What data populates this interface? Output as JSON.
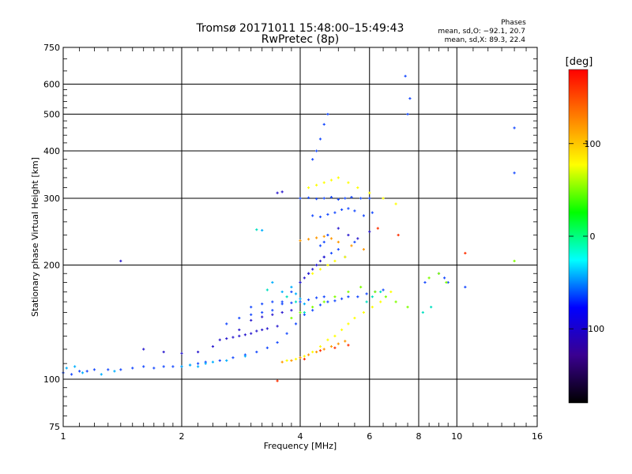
{
  "chart_data": {
    "type": "scatter",
    "title": "Tromsø 20171011 15:48:00–15:49:43",
    "subtitle": "RwPretec (8p)",
    "xlabel": "Frequency [MHz]",
    "ylabel": "Stationary phase Virtual Height [km]",
    "x_scale": "log",
    "y_scale": "log",
    "xlim": [
      1,
      16
    ],
    "ylim": [
      75,
      750
    ],
    "x_ticks": [
      1,
      2,
      4,
      6,
      8,
      10,
      16
    ],
    "y_ticks": [
      75,
      100,
      200,
      300,
      400,
      500,
      600,
      750
    ],
    "grid": true,
    "annotation": {
      "title": "Phases",
      "line1": "mean, sd,O: −92.1, 20.7",
      "line2": "mean, sd,X:  89.3, 22.4"
    },
    "colorbar": {
      "label": "[deg]",
      "range": [
        -180,
        180
      ],
      "ticks": [
        100,
        0,
        -100
      ],
      "colors": [
        "#ff0000",
        "#ff8000",
        "#ffff00",
        "#00ff00",
        "#00ffff",
        "#0000ff",
        "#3a0090",
        "#000000"
      ]
    },
    "series": [
      {
        "color": "#1a4dff",
        "phase": -100,
        "x": [
          1.0,
          1.05,
          1.1,
          1.15,
          1.2,
          1.3,
          1.4,
          1.5,
          1.6,
          1.7,
          1.8,
          1.9,
          2.0,
          2.1,
          2.2,
          2.3,
          2.5,
          2.7,
          2.9,
          3.1,
          3.3,
          3.5,
          3.7,
          3.9,
          4.1,
          4.3,
          4.5,
          4.7,
          4.9,
          5.1,
          5.3,
          5.6,
          5.9,
          6.2,
          6.5,
          4.0,
          4.2,
          4.4,
          4.6,
          4.8,
          5.0,
          5.2,
          5.4,
          5.7,
          6.0,
          4.3,
          4.4,
          4.5,
          4.6,
          4.7,
          4.5,
          4.6,
          4.7,
          3.0,
          3.2,
          3.4,
          3.6,
          3.8,
          4.0,
          4.2,
          4.4,
          4.6,
          2.6,
          2.8,
          3.0,
          3.2,
          3.4,
          3.6,
          3.8,
          4.0,
          4.2,
          4.4,
          4.6,
          4.8,
          5.0,
          5.2,
          5.5,
          5.8,
          6.1,
          4.3,
          4.5,
          4.7,
          4.9,
          5.1,
          5.3,
          5.5,
          7.4,
          7.5,
          7.6,
          8.3,
          9.0,
          9.3,
          9.5,
          10.5,
          14.0,
          14.0
        ],
        "y": [
          104,
          103,
          105,
          105,
          106,
          106,
          106,
          107,
          108,
          107,
          108,
          108,
          108,
          109,
          110,
          111,
          112,
          114,
          116,
          118,
          121,
          125,
          132,
          140,
          148,
          152,
          157,
          160,
          161,
          163,
          165,
          165,
          168,
          170,
          172,
          300,
          301,
          299,
          300,
          302,
          298,
          300,
          302,
          300,
          300,
          380,
          400,
          430,
          470,
          500,
          225,
          230,
          240,
          155,
          158,
          160,
          158,
          159,
          160,
          162,
          164,
          165,
          140,
          145,
          148,
          150,
          152,
          160,
          170,
          180,
          190,
          200,
          210,
          215,
          220,
          210,
          230,
          270,
          275,
          270,
          268,
          272,
          275,
          280,
          282,
          278,
          630,
          500,
          550,
          180,
          190,
          185,
          180,
          175,
          460,
          350
        ]
      },
      {
        "color": "#2f1fd0",
        "phase": -115,
        "x": [
          1.4,
          1.6,
          1.8,
          2.0,
          2.2,
          2.4,
          2.6,
          2.8,
          3.0,
          3.2,
          3.4,
          3.6,
          3.8,
          4.0,
          4.1,
          4.2,
          4.3,
          4.4,
          4.5,
          4.6,
          3.5,
          3.6,
          2.8,
          3.0,
          3.2,
          2.5,
          2.7,
          2.9,
          3.1,
          3.3,
          3.5,
          5.0,
          5.3,
          5.6,
          6.0
        ],
        "y": [
          205,
          120,
          118,
          117,
          118,
          122,
          128,
          135,
          143,
          146,
          148,
          150,
          152,
          180,
          185,
          190,
          195,
          200,
          205,
          210,
          310,
          312,
          130,
          132,
          135,
          127,
          129,
          131,
          134,
          136,
          138,
          250,
          240,
          235,
          245
        ]
      },
      {
        "color": "#00b0ff",
        "phase": -60,
        "x": [
          1.02,
          1.07,
          1.12,
          1.25,
          1.35,
          2.0,
          2.1,
          2.2,
          2.3,
          2.4,
          2.6,
          2.9,
          3.2,
          3.4,
          3.6,
          3.8,
          3.9,
          4.0,
          4.1
        ],
        "y": [
          107,
          108,
          104,
          103,
          105,
          108,
          109,
          108,
          110,
          111,
          112,
          115,
          247,
          180,
          170,
          175,
          168,
          163,
          158
        ]
      },
      {
        "color": "#00e0c0",
        "phase": -20,
        "x": [
          3.1,
          3.3,
          3.7,
          3.9,
          4.1,
          5.9,
          6.1,
          6.4,
          8.2,
          8.6
        ],
        "y": [
          248,
          172,
          165,
          160,
          150,
          160,
          165,
          170,
          150,
          155
        ]
      },
      {
        "color": "#80ff00",
        "phase": 40,
        "x": [
          3.8,
          4.0,
          4.3,
          4.6,
          4.9,
          5.3,
          5.7,
          6.2,
          6.6,
          7.0,
          7.5,
          8.5,
          9.0,
          9.4,
          14.0
        ],
        "y": [
          145,
          150,
          155,
          160,
          165,
          170,
          175,
          170,
          165,
          160,
          155,
          185,
          190,
          180,
          205
        ]
      },
      {
        "color": "#ffff00",
        "phase": 100,
        "x": [
          3.7,
          3.9,
          4.1,
          4.3,
          4.5,
          4.7,
          4.9,
          5.1,
          5.3,
          5.5,
          5.8,
          6.1,
          6.4,
          6.8,
          4.2,
          4.4,
          4.6,
          4.8,
          5.0,
          5.3,
          5.6,
          6.0,
          6.5,
          7.0,
          4.3,
          4.5,
          4.7,
          4.9,
          5.2
        ],
        "y": [
          112,
          113,
          115,
          118,
          122,
          127,
          130,
          135,
          140,
          145,
          150,
          155,
          160,
          170,
          320,
          325,
          330,
          335,
          340,
          330,
          320,
          310,
          300,
          290,
          190,
          195,
          200,
          205,
          210
        ]
      },
      {
        "color": "#ff9a00",
        "phase": 140,
        "x": [
          3.6,
          3.8,
          4.0,
          4.2,
          4.4,
          4.6,
          4.8,
          5.0,
          5.2,
          4.0,
          4.2,
          4.4,
          4.6,
          4.8,
          5.0,
          5.4,
          5.8
        ],
        "y": [
          111,
          112,
          114,
          116,
          118,
          120,
          122,
          124,
          126,
          232,
          234,
          236,
          238,
          235,
          230,
          225,
          220
        ]
      },
      {
        "color": "#ff3000",
        "phase": 165,
        "x": [
          3.5,
          4.1,
          4.5,
          4.9,
          5.3,
          6.3,
          7.1,
          10.5
        ],
        "y": [
          99,
          113,
          119,
          121,
          123,
          250,
          240,
          215
        ]
      }
    ]
  }
}
